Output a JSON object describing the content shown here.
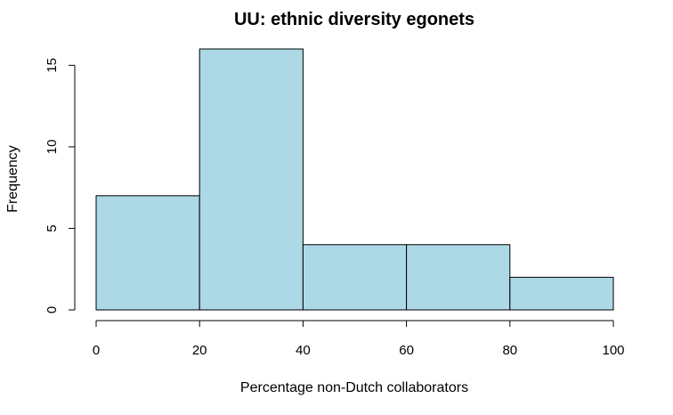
{
  "chart_data": {
    "type": "bar",
    "title": "UU: ethnic diversity egonets",
    "xlabel": "Percentage non-Dutch collaborators",
    "ylabel": "Frequency",
    "bins": [
      {
        "from": 0,
        "to": 20,
        "count": 7
      },
      {
        "from": 20,
        "to": 40,
        "count": 16
      },
      {
        "from": 40,
        "to": 60,
        "count": 4
      },
      {
        "from": 60,
        "to": 80,
        "count": 4
      },
      {
        "from": 80,
        "to": 100,
        "count": 2
      }
    ],
    "xlim": [
      0,
      100
    ],
    "ylim": [
      0,
      16
    ],
    "x_ticks": [
      0,
      20,
      40,
      60,
      80,
      100
    ],
    "y_ticks": [
      0,
      5,
      10,
      15
    ],
    "grid": false,
    "bar_color": "#add8e6"
  }
}
